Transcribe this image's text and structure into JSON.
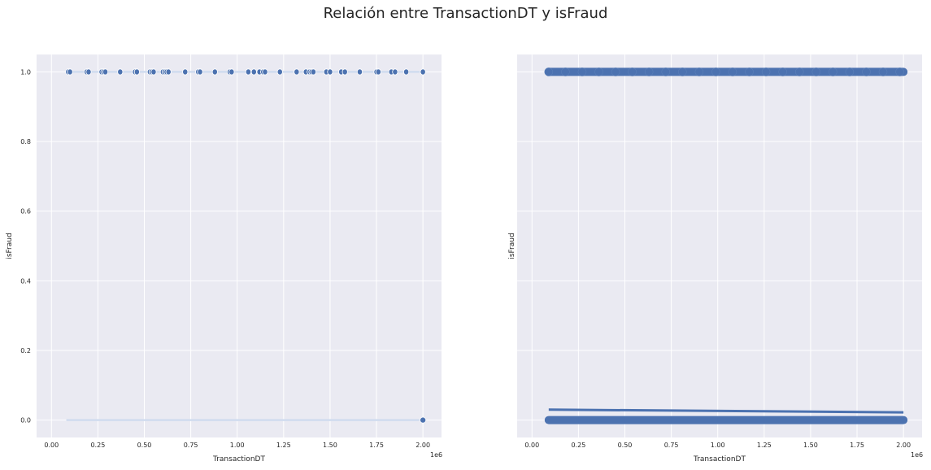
{
  "figure": {
    "title": "Relación entre TransactionDT y isFraud"
  },
  "colors": {
    "panel_bg": "#eaeaf2",
    "grid": "#ffffff",
    "series": "#4c72b0",
    "series_light": "#d0dcef"
  },
  "chart_data": [
    {
      "type": "scatter",
      "xlabel": "TransactionDT",
      "ylabel": "isFraud",
      "x_offset_label": "1e6",
      "xlim": [
        0,
        2.0
      ],
      "ylim": [
        -0.05,
        1.05
      ],
      "xticks": [
        "0.00",
        "0.25",
        "0.50",
        "0.75",
        "1.00",
        "1.25",
        "1.50",
        "1.75",
        "2.00"
      ],
      "yticks": [
        "0.0",
        "0.2",
        "0.4",
        "0.6",
        "0.8",
        "1.0"
      ],
      "grid": true,
      "series": [
        {
          "points_fraud": [
            0.09,
            0.1,
            0.19,
            0.2,
            0.27,
            0.28,
            0.29,
            0.37,
            0.45,
            0.46,
            0.53,
            0.54,
            0.55,
            0.6,
            0.61,
            0.62,
            0.63,
            0.72,
            0.79,
            0.8,
            0.88,
            0.96,
            0.97,
            1.06,
            1.09,
            1.12,
            1.14,
            1.15,
            1.23,
            1.32,
            1.37,
            1.39,
            1.4,
            1.41,
            1.48,
            1.5,
            1.56,
            1.58,
            1.66,
            1.75,
            1.76,
            1.83,
            1.85,
            1.91,
            2.0
          ],
          "point_nonfraud_end": [
            2.0,
            0
          ],
          "line_y0_range": [
            0.08,
            2.0
          ]
        }
      ]
    },
    {
      "type": "scatter",
      "xlabel": "TransactionDT",
      "ylabel": "isFraud",
      "x_offset_label": "1e6",
      "xlim": [
        0,
        2.0
      ],
      "ylim": [
        -0.05,
        1.05
      ],
      "xticks": [
        "0.00",
        "0.25",
        "0.50",
        "0.75",
        "1.00",
        "1.25",
        "1.50",
        "1.75",
        "2.00"
      ],
      "grid": true,
      "series": [
        {
          "dense_range_x": [
            0.09,
            2.0
          ],
          "y_levels": [
            1,
            0
          ],
          "regression_line": [
            [
              0.09,
              0.03
            ],
            [
              2.0,
              0.022
            ]
          ]
        }
      ]
    }
  ]
}
